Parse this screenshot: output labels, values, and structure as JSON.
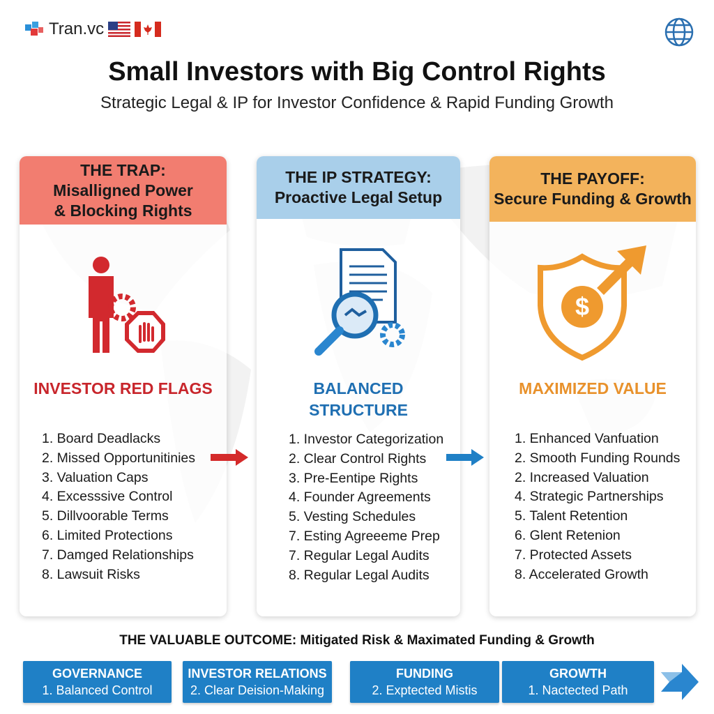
{
  "brand": {
    "name": "Tran.vc",
    "flags": [
      "us-flag",
      "canada-flag"
    ],
    "globe_icon": "globe-icon"
  },
  "title": "Small Investors with Big Control Rights",
  "subtitle": "Strategic Legal & IP for Investor Confidence & Rapid Funding Growth",
  "columns": [
    {
      "header": [
        "THE TRAP:",
        "Misalligned Power",
        "& Blocking Rights"
      ],
      "header_color": "#f27d70",
      "icon": "person-gear-stop-hand-icon",
      "section": "INVESTOR RED FLAGS",
      "section_color": "#c8262c",
      "items": [
        "1. Board Deadlacks",
        "2. Missed Opportunitinies",
        "3. Valuation Caps",
        "4. Excesssive Control",
        "5. Dillvoorable Terms",
        "6. Limited Protections",
        "7. Damged Relationships",
        "8. Lawsuit Risks"
      ]
    },
    {
      "header": [
        "THE IP STRATEGY:",
        "Proactive Legal Setup"
      ],
      "header_color": "#a9cfea",
      "icon": "document-magnifier-handshake-gear-icon",
      "section": [
        "BALANCED",
        "STRUCTURE"
      ],
      "section_color": "#1f6fb2",
      "items": [
        "1. Investor Categorization",
        "2. Clear Control Rights",
        "3. Pre-Eentipe Rights",
        "4. Founder Agreements",
        "5. Vesting Schedules",
        "7. Esting Agreeeme Prep",
        "7. Regular Legal Audits",
        "8. Regular Legal Audits"
      ]
    },
    {
      "header": [
        "THE PAYOFF:",
        "Secure Funding & Growth"
      ],
      "header_color": "#f3b35c",
      "icon": "shield-dollar-arrow-icon",
      "section": "MAXIMIZED VALUE",
      "section_color": "#e8912b",
      "items": [
        "1. Enhanced Vanfuation",
        "2. Smooth Funding Rounds",
        "2. Increased Valuation",
        "4. Strategic Partnerships",
        "5. Talent Retention",
        "6. Glent Retenion",
        "7. Protected Assets",
        "8. Accelerated Growth"
      ]
    }
  ],
  "arrow_colors": [
    "#d42a2a",
    "#1f80c6"
  ],
  "outcome": {
    "title": "THE VALUABLE OUTCOME: Mitigated Risk & Maximated Funding & Growth",
    "boxes": [
      {
        "title": "GOVERNANCE",
        "detail": "1. Balanced Control"
      },
      {
        "title": "INVESTOR RELATIONS",
        "detail": "2. Clear Deision-Making"
      },
      {
        "title": "FUNDING",
        "detail": "2. Exptected Mistis"
      },
      {
        "title": "GROWTH",
        "detail": "1. Nactected Path"
      }
    ]
  }
}
